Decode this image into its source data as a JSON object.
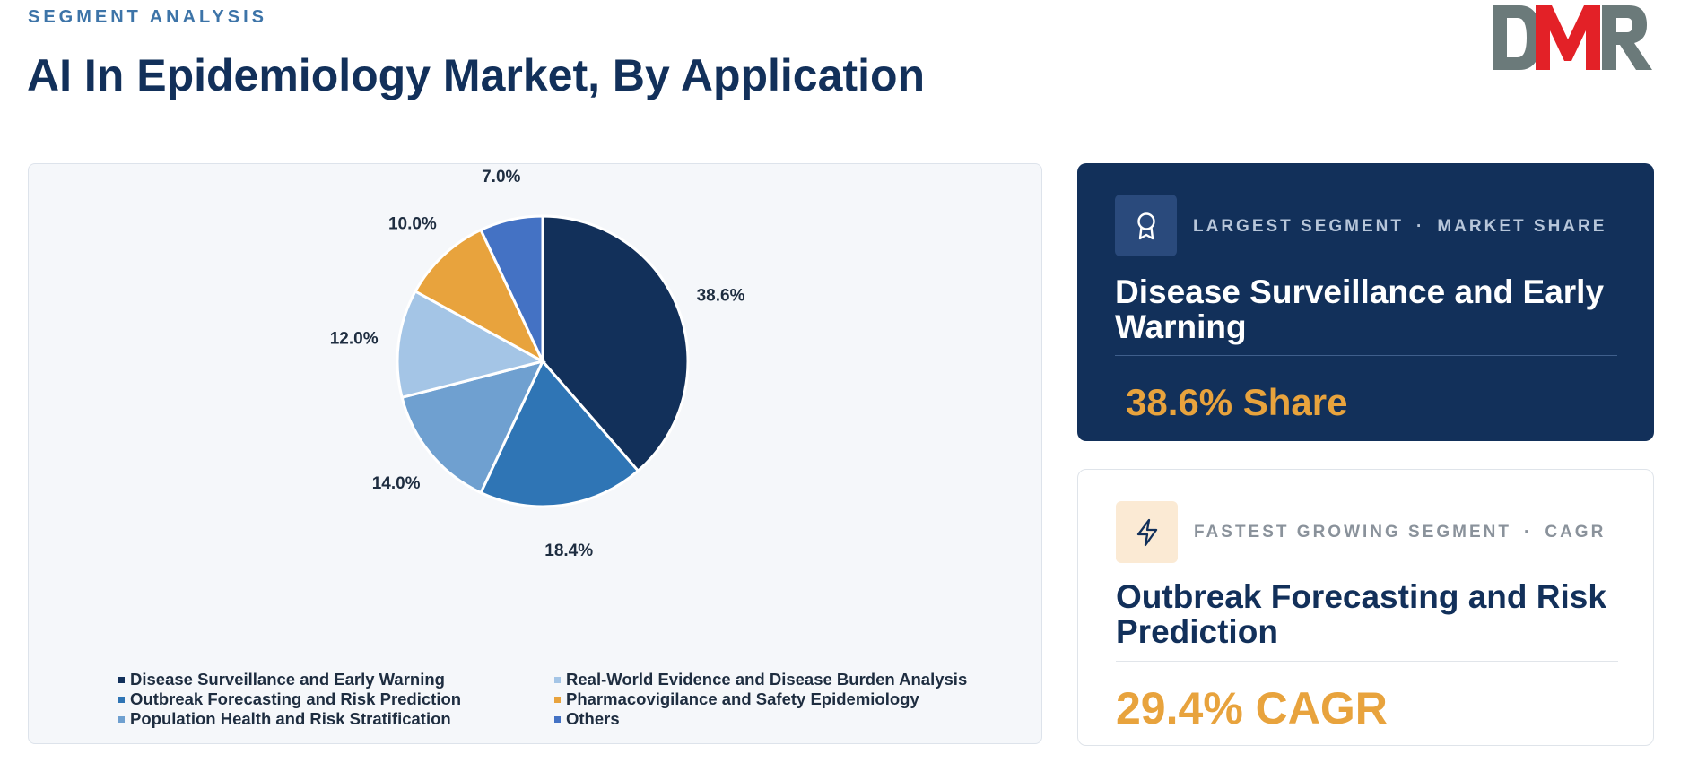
{
  "header": {
    "eyebrow": "SEGMENT ANALYSIS",
    "title": "AI In Epidemiology Market, By Application",
    "logo_text": "DMR"
  },
  "chart_data": {
    "type": "pie",
    "title": "",
    "slices": [
      {
        "label": "Disease Surveillance and Early Warning",
        "value": 38.6,
        "display": "38.6%",
        "color": "#12305a"
      },
      {
        "label": "Outbreak Forecasting and Risk Prediction",
        "value": 18.4,
        "display": "18.4%",
        "color": "#2f75b5"
      },
      {
        "label": "Population Health and Risk Stratification",
        "value": 14.0,
        "display": "14.0%",
        "color": "#6fa0d0"
      },
      {
        "label": "Real-World Evidence and Disease Burden Analysis",
        "value": 12.0,
        "display": "12.0%",
        "color": "#a4c5e6"
      },
      {
        "label": "Pharmacovigilance and Safety Epidemiology",
        "value": 10.0,
        "display": "10.0%",
        "color": "#e8a33d"
      },
      {
        "label": "Others",
        "value": 7.0,
        "display": "7.0%",
        "color": "#4472c4"
      }
    ],
    "legend_position": "bottom"
  },
  "largest_segment": {
    "label": "LARGEST SEGMENT",
    "metric": "MARKET SHARE",
    "separator": "·",
    "icon": "award-icon",
    "name": "Disease Surveillance and Early Warning",
    "value": "38.6% Share"
  },
  "fastest_segment": {
    "label": "FASTEST GROWING SEGMENT",
    "metric": "CAGR",
    "separator": "·",
    "icon": "lightning-icon",
    "name": "Outbreak Forecasting and Risk Prediction",
    "value": "29.4% CAGR"
  },
  "colors": {
    "navy": "#12305a",
    "accent": "#e8a33d",
    "eyebrow": "#3d74a8",
    "logo_grey": "#6b7a7a",
    "logo_red": "#e32127"
  }
}
